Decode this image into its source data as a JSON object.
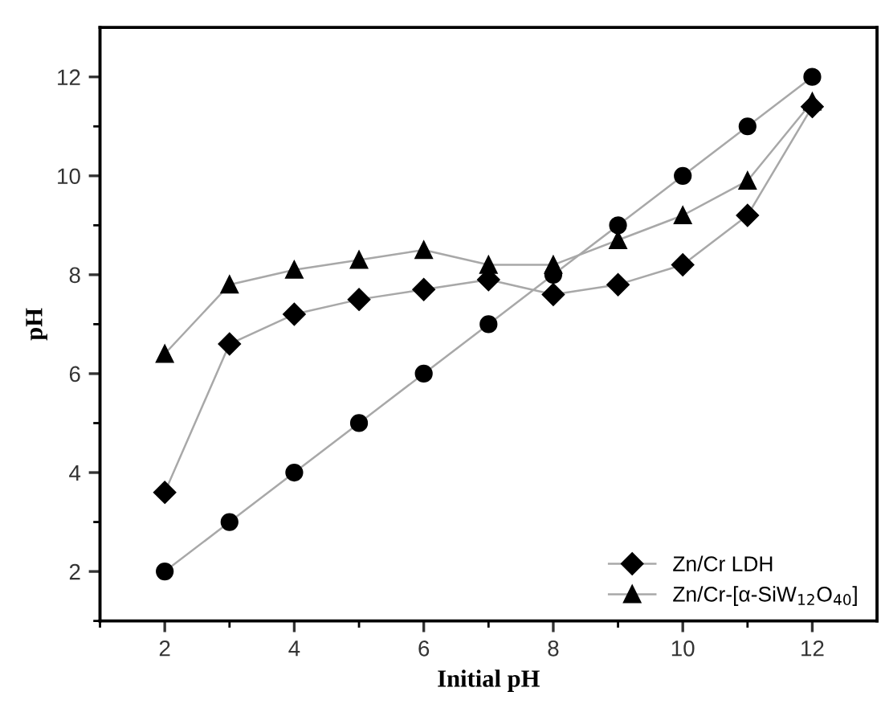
{
  "chart_data": {
    "type": "line",
    "xlabel": "Initial pH",
    "ylabel": "pH",
    "x": [
      2,
      3,
      4,
      5,
      6,
      7,
      8,
      9,
      10,
      11,
      12
    ],
    "series": [
      {
        "color": "#000000",
        "marker": "circle",
        "values": [
          2,
          3,
          4,
          5,
          6,
          7,
          8,
          9,
          10,
          11,
          12
        ]
      },
      {
        "name": "Zn/Cr LDH",
        "color": "#000000",
        "marker": "diamond",
        "values": [
          3.6,
          6.6,
          7.2,
          7.5,
          7.7,
          7.9,
          7.6,
          7.8,
          8.2,
          9.2,
          11.4
        ]
      },
      {
        "name": "Zn/Cr-[α-SiW$_{12}$O$_{40}$]",
        "color": "#000000",
        "marker": "triangle",
        "values": [
          6.4,
          7.8,
          8.1,
          8.3,
          8.5,
          8.2,
          8.2,
          8.7,
          9.2,
          9.9,
          11.5
        ]
      }
    ],
    "xlim": [
      1,
      13
    ],
    "ylim": [
      1,
      13
    ],
    "xticks": [
      {
        "value": 1,
        "label": null
      },
      2,
      {
        "value": 3,
        "label": null
      },
      4,
      {
        "value": 5,
        "label": null
      },
      6,
      {
        "value": 7,
        "label": null
      },
      8,
      {
        "value": 9,
        "label": null
      },
      10,
      {
        "value": 11,
        "label": null
      },
      12
    ],
    "yticks": [
      {
        "value": 1,
        "label": null
      },
      2,
      {
        "value": 3,
        "label": null
      },
      4,
      {
        "value": 5,
        "label": null
      },
      6,
      {
        "value": 7,
        "label": null
      },
      8,
      {
        "value": 9,
        "label": null
      },
      10,
      {
        "value": 11,
        "label": null
      },
      12
    ],
    "grid": false,
    "legend": "bottom right",
    "line_style": "solid"
  }
}
